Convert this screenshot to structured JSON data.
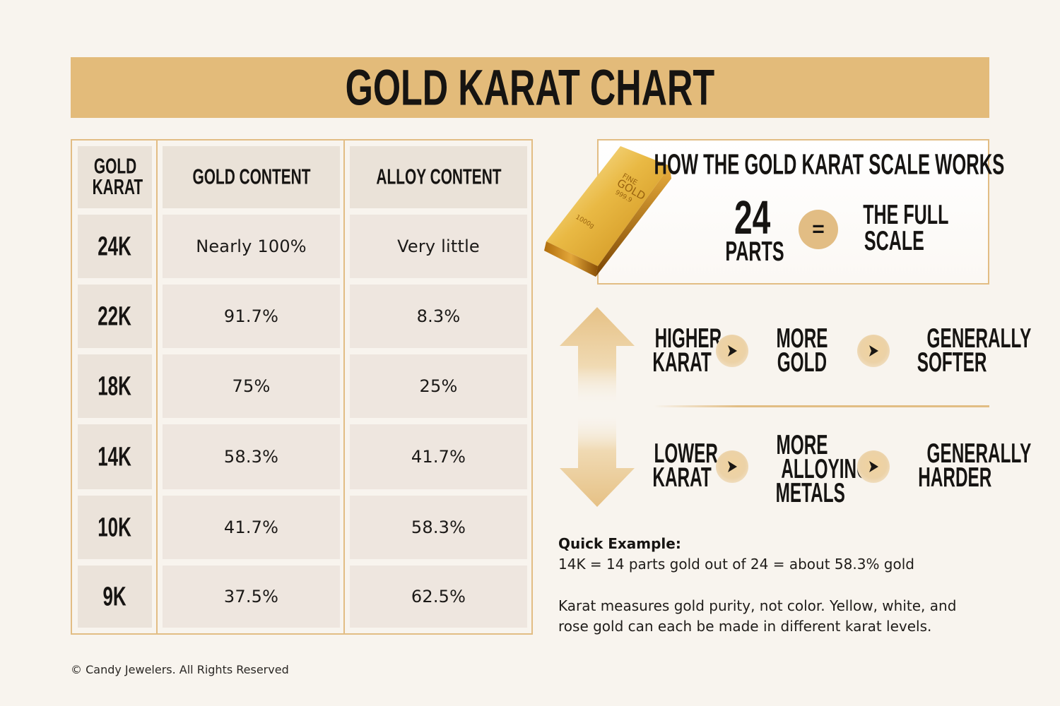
{
  "header": {
    "title": "GOLD KARAT CHART"
  },
  "table": {
    "columns": [
      "GOLD KARAT",
      "GOLD CONTENT",
      "ALLOY CONTENT"
    ],
    "rows": [
      {
        "karat": "24K",
        "gold": "Nearly 100%",
        "alloy": "Very little"
      },
      {
        "karat": "22K",
        "gold": "91.7%",
        "alloy": "8.3%"
      },
      {
        "karat": "18K",
        "gold": "75%",
        "alloy": "25%"
      },
      {
        "karat": "14K",
        "gold": "58.3%",
        "alloy": "41.7%"
      },
      {
        "karat": "10K",
        "gold": "41.7%",
        "alloy": "58.3%"
      },
      {
        "karat": "9K",
        "gold": "37.5%",
        "alloy": "62.5%"
      }
    ]
  },
  "scale": {
    "title": "HOW THE GOLD KARAT SCALE WORKS",
    "number": "24",
    "parts": "PARTS",
    "equals": "=",
    "full_line1": "THE FULL",
    "full_line2": "SCALE"
  },
  "gold_bar": {
    "stamp_line1": "FINE",
    "stamp_line2": "GOLD",
    "stamp_line3": "999.9",
    "weight": "1000g"
  },
  "flow": {
    "higher": {
      "col1": [
        "HIGHER",
        "KARAT"
      ],
      "col2": [
        "MORE",
        "GOLD"
      ],
      "col3": [
        "GENERALLY",
        "SOFTER"
      ]
    },
    "lower": {
      "col1": [
        "LOWER",
        "KARAT"
      ],
      "col2": [
        "MORE",
        "ALLOYING",
        "METALS"
      ],
      "col3": [
        "GENERALLY",
        "HARDER"
      ]
    }
  },
  "notes": {
    "example_label": "Quick Example:",
    "example_text": "14K = 14 parts gold out of 24 = about 58.3% gold",
    "note_text": "Karat measures gold purity, not color. Yellow, white, and rose gold can each be made in different karat levels."
  },
  "footer": {
    "copyright": "© Candy Jewelers. All Rights Reserved"
  },
  "colors": {
    "accent": "#e3bb7a",
    "border": "#e2bd84",
    "background": "#f8f4ee",
    "cell": "#eee6df",
    "text": "#161412"
  },
  "icons": [
    "gold-bar-icon",
    "up-arrow-icon",
    "down-arrow-icon",
    "chevron-right-icon",
    "equals-icon"
  ]
}
